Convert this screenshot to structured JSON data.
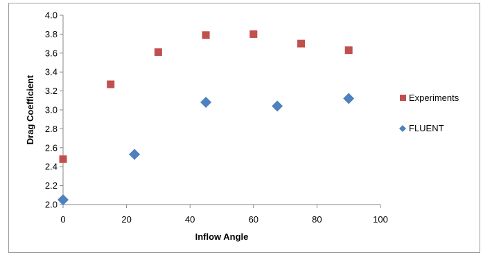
{
  "chart_data": {
    "type": "scatter",
    "title": "",
    "xlabel": "Inflow Angle",
    "ylabel": "Drag Coefficient",
    "xlim": [
      0,
      100
    ],
    "ylim": [
      2.0,
      4.0
    ],
    "xticks": [
      0,
      20,
      40,
      60,
      80,
      100
    ],
    "yticks": [
      2.0,
      2.2,
      2.4,
      2.6,
      2.8,
      3.0,
      3.2,
      3.4,
      3.6,
      3.8,
      4.0
    ],
    "x_tick_labels": [
      "0",
      "20",
      "40",
      "60",
      "80",
      "100"
    ],
    "y_tick_labels": [
      "2.0",
      "2.2",
      "2.4",
      "2.6",
      "2.8",
      "3.0",
      "3.2",
      "3.4",
      "3.6",
      "3.8",
      "4.0"
    ],
    "grid": false,
    "legend_position": "right",
    "series": [
      {
        "name": "Experiments",
        "marker": "square",
        "color": "#c0504d",
        "points": [
          [
            0,
            2.48
          ],
          [
            15,
            3.27
          ],
          [
            30,
            3.61
          ],
          [
            45,
            3.79
          ],
          [
            60,
            3.8
          ],
          [
            75,
            3.7
          ],
          [
            90,
            3.63
          ]
        ]
      },
      {
        "name": "FLUENT",
        "marker": "diamond",
        "color": "#4f81bd",
        "points": [
          [
            0,
            2.05
          ],
          [
            22.5,
            2.53
          ],
          [
            45,
            3.08
          ],
          [
            67.5,
            3.04
          ],
          [
            90,
            3.12
          ]
        ]
      }
    ]
  }
}
